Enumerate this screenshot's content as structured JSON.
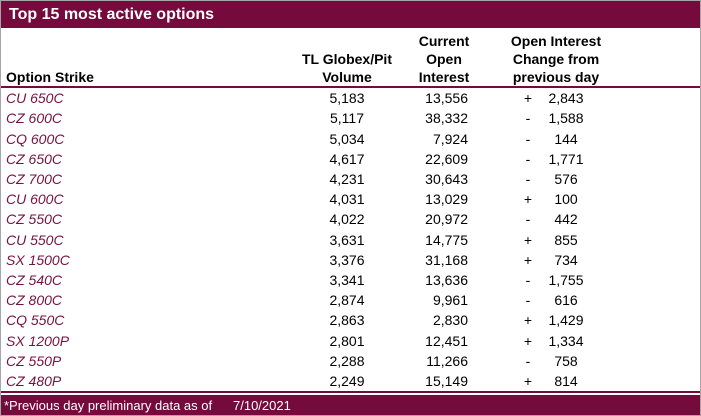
{
  "colors": {
    "maroon": "#740B3C",
    "strike_text": "#76123E",
    "header_text": "#000000",
    "data_text": "#000000",
    "title_text": "#FFFFFF",
    "background": "#FFFFFF",
    "outer_border": "#A6A6A6"
  },
  "title_bar": {
    "title": "Top 15 most active options"
  },
  "table": {
    "header": {
      "strike": "Option Strike",
      "volume": [
        "TL Globex/Pit",
        "Volume"
      ],
      "open_interest": [
        "Current",
        "Open",
        "Interest"
      ],
      "change": [
        "Open Interest",
        "Change from",
        "previous day"
      ]
    },
    "rows": [
      {
        "strike": "CU 650C",
        "volume": "5,183",
        "open_interest": "13,556",
        "change_sign": "+",
        "change_value": "2,843"
      },
      {
        "strike": "CZ 600C",
        "volume": "5,117",
        "open_interest": "38,332",
        "change_sign": "-",
        "change_value": "1,588"
      },
      {
        "strike": "CQ 600C",
        "volume": "5,034",
        "open_interest": "7,924",
        "change_sign": "-",
        "change_value": "144"
      },
      {
        "strike": "CZ 650C",
        "volume": "4,617",
        "open_interest": "22,609",
        "change_sign": "-",
        "change_value": "1,771"
      },
      {
        "strike": "CZ 700C",
        "volume": "4,231",
        "open_interest": "30,643",
        "change_sign": "-",
        "change_value": "576"
      },
      {
        "strike": "CU 600C",
        "volume": "4,031",
        "open_interest": "13,029",
        "change_sign": "+",
        "change_value": "100"
      },
      {
        "strike": "CZ 550C",
        "volume": "4,022",
        "open_interest": "20,972",
        "change_sign": "-",
        "change_value": "442"
      },
      {
        "strike": "CU 550C",
        "volume": "3,631",
        "open_interest": "14,775",
        "change_sign": "+",
        "change_value": "855"
      },
      {
        "strike": "SX 1500C",
        "volume": "3,376",
        "open_interest": "31,168",
        "change_sign": "+",
        "change_value": "734"
      },
      {
        "strike": "CZ 540C",
        "volume": "3,341",
        "open_interest": "13,636",
        "change_sign": "-",
        "change_value": "1,755"
      },
      {
        "strike": "CZ 800C",
        "volume": "2,874",
        "open_interest": "9,961",
        "change_sign": "-",
        "change_value": "616"
      },
      {
        "strike": "CQ 550C",
        "volume": "2,863",
        "open_interest": "2,830",
        "change_sign": "+",
        "change_value": "1,429"
      },
      {
        "strike": "SX 1200P",
        "volume": "2,801",
        "open_interest": "12,451",
        "change_sign": "+",
        "change_value": "1,334"
      },
      {
        "strike": "CZ 550P",
        "volume": "2,288",
        "open_interest": "11,266",
        "change_sign": "-",
        "change_value": "758"
      },
      {
        "strike": "CZ 480P",
        "volume": "2,249",
        "open_interest": "15,149",
        "change_sign": "+",
        "change_value": "814"
      }
    ]
  },
  "footer": {
    "note": "*Previous day preliminary data as of",
    "date": "7/10/2021"
  },
  "chart_data": {
    "type": "table",
    "title": "Top 15 most active options",
    "columns": [
      "Option Strike",
      "TL Globex/Pit Volume",
      "Current Open Interest",
      "Open Interest Change from previous day"
    ],
    "rows": [
      [
        "CU 650C",
        5183,
        13556,
        2843
      ],
      [
        "CZ 600C",
        5117,
        38332,
        -1588
      ],
      [
        "CQ 600C",
        5034,
        7924,
        -144
      ],
      [
        "CZ 650C",
        4617,
        22609,
        -1771
      ],
      [
        "CZ 700C",
        4231,
        30643,
        -576
      ],
      [
        "CU 600C",
        4031,
        13029,
        100
      ],
      [
        "CZ 550C",
        4022,
        20972,
        -442
      ],
      [
        "CU 550C",
        3631,
        14775,
        855
      ],
      [
        "SX 1500C",
        3376,
        31168,
        734
      ],
      [
        "CZ 540C",
        3341,
        13636,
        -1755
      ],
      [
        "CZ 800C",
        2874,
        9961,
        -616
      ],
      [
        "CQ 550C",
        2863,
        2830,
        1429
      ],
      [
        "SX 1200P",
        2801,
        12451,
        1334
      ],
      [
        "CZ 550P",
        2288,
        11266,
        -758
      ],
      [
        "CZ 480P",
        2249,
        15149,
        814
      ]
    ],
    "footnote": "*Previous day preliminary data as of 7/10/2021"
  }
}
